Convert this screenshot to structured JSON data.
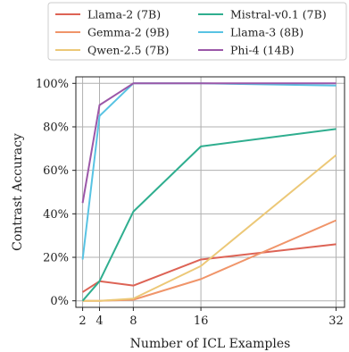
{
  "chart_data": {
    "type": "line",
    "xlabel": "Number of ICL Examples",
    "ylabel": "Contrast Accuracy",
    "x": [
      2,
      4,
      8,
      16,
      32
    ],
    "xticks": [
      "2",
      "4",
      "8",
      "16",
      "32"
    ],
    "yticks": [
      "0%",
      "20%",
      "40%",
      "60%",
      "80%",
      "100%"
    ],
    "ytick_values": [
      0,
      20,
      40,
      60,
      80,
      100
    ],
    "ylim": [
      -3,
      103
    ],
    "xlim": [
      1.2,
      33
    ],
    "grid": true,
    "legend_position": "top",
    "series": [
      {
        "name": "Llama-2 (7B)",
        "color": "#dd6355",
        "values": [
          4,
          9,
          7,
          19,
          26
        ]
      },
      {
        "name": "Gemma-2 (9B)",
        "color": "#f0956a",
        "values": [
          0,
          0,
          0.5,
          10,
          37
        ]
      },
      {
        "name": "Qwen-2.5 (7B)",
        "color": "#ecc877",
        "values": [
          0,
          0,
          1,
          16,
          67
        ]
      },
      {
        "name": "Mistral-v0.1 (7B)",
        "color": "#2fae8f",
        "values": [
          0,
          9,
          41,
          71,
          79
        ]
      },
      {
        "name": "Llama-3 (8B)",
        "color": "#58c3e3",
        "values": [
          19,
          85,
          100,
          100,
          99
        ]
      },
      {
        "name": "Phi-4 (14B)",
        "color": "#9b57a8",
        "values": [
          45,
          90,
          100,
          100,
          100
        ]
      }
    ]
  }
}
